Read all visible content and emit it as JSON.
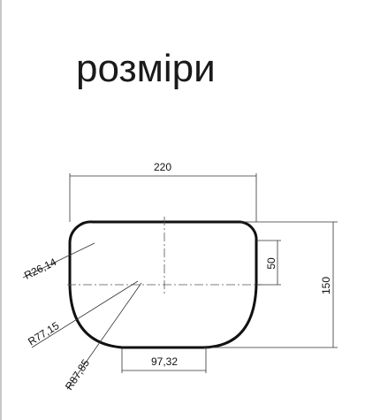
{
  "title": "розміри",
  "dimensions": {
    "width": "220",
    "height": "150",
    "offset": "50",
    "bottom_width": "97,32"
  },
  "radii": {
    "r_corner": "R26,14",
    "r_mid": "R77,15",
    "r_large": "R87,85"
  },
  "colors": {
    "outline": "#111111",
    "dimension_line": "#333333",
    "centerline": "#555555"
  }
}
